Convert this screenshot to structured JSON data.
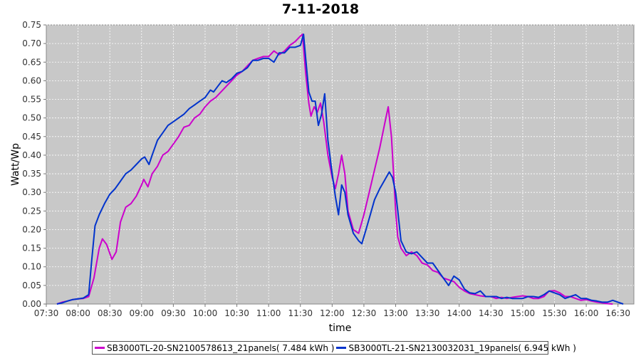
{
  "chart_data": {
    "type": "line",
    "title": "7-11-2018",
    "xlabel": "time",
    "ylabel": "Watt/Wp",
    "x_tick_labels": [
      "07:30",
      "08:00",
      "08:30",
      "09:00",
      "09:30",
      "10:00",
      "10:30",
      "11:00",
      "11:30",
      "12:00",
      "12:30",
      "13:00",
      "13:30",
      "14:00",
      "14:30",
      "15:00",
      "15:30",
      "16:00",
      "16:30"
    ],
    "y_tick_labels": [
      "0.00",
      "0.05",
      "0.10",
      "0.15",
      "0.20",
      "0.25",
      "0.30",
      "0.35",
      "0.40",
      "0.45",
      "0.50",
      "0.55",
      "0.60",
      "0.65",
      "0.70",
      "0.75"
    ],
    "xlim": [
      "07:30",
      "16:45"
    ],
    "ylim": [
      0,
      0.75
    ],
    "grid": true,
    "background": "#c8c8c8",
    "legend_position": "bottom",
    "series": [
      {
        "name": "SB3000TL-20-SN2100578613_21panels( 7.484 kWh )",
        "color": "#cc00cc",
        "points": [
          [
            "07:40",
            0.0
          ],
          [
            "07:45",
            0.005
          ],
          [
            "07:50",
            0.008
          ],
          [
            "07:55",
            0.012
          ],
          [
            "08:00",
            0.014
          ],
          [
            "08:05",
            0.015
          ],
          [
            "08:10",
            0.02
          ],
          [
            "08:15",
            0.07
          ],
          [
            "08:20",
            0.15
          ],
          [
            "08:23",
            0.175
          ],
          [
            "08:27",
            0.16
          ],
          [
            "08:32",
            0.12
          ],
          [
            "08:36",
            0.14
          ],
          [
            "08:40",
            0.22
          ],
          [
            "08:45",
            0.26
          ],
          [
            "08:50",
            0.27
          ],
          [
            "08:55",
            0.29
          ],
          [
            "09:00",
            0.32
          ],
          [
            "09:02",
            0.335
          ],
          [
            "09:06",
            0.315
          ],
          [
            "09:10",
            0.35
          ],
          [
            "09:15",
            0.37
          ],
          [
            "09:20",
            0.4
          ],
          [
            "09:25",
            0.41
          ],
          [
            "09:30",
            0.43
          ],
          [
            "09:35",
            0.45
          ],
          [
            "09:40",
            0.475
          ],
          [
            "09:45",
            0.48
          ],
          [
            "09:50",
            0.5
          ],
          [
            "09:55",
            0.51
          ],
          [
            "10:00",
            0.53
          ],
          [
            "10:05",
            0.545
          ],
          [
            "10:10",
            0.555
          ],
          [
            "10:15",
            0.57
          ],
          [
            "10:20",
            0.585
          ],
          [
            "10:25",
            0.6
          ],
          [
            "10:30",
            0.615
          ],
          [
            "10:35",
            0.625
          ],
          [
            "10:40",
            0.64
          ],
          [
            "10:45",
            0.655
          ],
          [
            "10:50",
            0.66
          ],
          [
            "10:55",
            0.665
          ],
          [
            "11:00",
            0.665
          ],
          [
            "11:05",
            0.68
          ],
          [
            "11:10",
            0.67
          ],
          [
            "11:15",
            0.68
          ],
          [
            "11:20",
            0.695
          ],
          [
            "11:25",
            0.705
          ],
          [
            "11:30",
            0.72
          ],
          [
            "11:32",
            0.725
          ],
          [
            "11:35",
            0.62
          ],
          [
            "11:38",
            0.54
          ],
          [
            "11:40",
            0.505
          ],
          [
            "11:43",
            0.53
          ],
          [
            "11:46",
            0.515
          ],
          [
            "11:49",
            0.54
          ],
          [
            "11:52",
            0.49
          ],
          [
            "11:56",
            0.4
          ],
          [
            "12:00",
            0.34
          ],
          [
            "12:03",
            0.31
          ],
          [
            "12:06",
            0.35
          ],
          [
            "12:09",
            0.4
          ],
          [
            "12:12",
            0.35
          ],
          [
            "12:15",
            0.25
          ],
          [
            "12:20",
            0.2
          ],
          [
            "12:25",
            0.19
          ],
          [
            "12:30",
            0.24
          ],
          [
            "12:35",
            0.3
          ],
          [
            "12:40",
            0.36
          ],
          [
            "12:45",
            0.42
          ],
          [
            "12:50",
            0.49
          ],
          [
            "12:53",
            0.53
          ],
          [
            "12:56",
            0.45
          ],
          [
            "12:58",
            0.35
          ],
          [
            "13:00",
            0.25
          ],
          [
            "13:02",
            0.18
          ],
          [
            "13:05",
            0.15
          ],
          [
            "13:10",
            0.13
          ],
          [
            "13:15",
            0.14
          ],
          [
            "13:20",
            0.13
          ],
          [
            "13:25",
            0.11
          ],
          [
            "13:30",
            0.105
          ],
          [
            "13:35",
            0.09
          ],
          [
            "13:40",
            0.085
          ],
          [
            "13:45",
            0.07
          ],
          [
            "13:50",
            0.065
          ],
          [
            "13:55",
            0.06
          ],
          [
            "14:00",
            0.045
          ],
          [
            "14:05",
            0.035
          ],
          [
            "14:10",
            0.028
          ],
          [
            "14:15",
            0.025
          ],
          [
            "14:20",
            0.022
          ],
          [
            "14:25",
            0.02
          ],
          [
            "14:30",
            0.02
          ],
          [
            "14:35",
            0.015
          ],
          [
            "14:40",
            0.018
          ],
          [
            "14:45",
            0.015
          ],
          [
            "14:50",
            0.018
          ],
          [
            "14:55",
            0.02
          ],
          [
            "15:00",
            0.022
          ],
          [
            "15:05",
            0.02
          ],
          [
            "15:10",
            0.015
          ],
          [
            "15:15",
            0.015
          ],
          [
            "15:20",
            0.02
          ],
          [
            "15:25",
            0.035
          ],
          [
            "15:30",
            0.036
          ],
          [
            "15:35",
            0.03
          ],
          [
            "15:40",
            0.02
          ],
          [
            "15:45",
            0.02
          ],
          [
            "15:50",
            0.015
          ],
          [
            "15:55",
            0.01
          ],
          [
            "16:00",
            0.012
          ],
          [
            "16:05",
            0.008
          ],
          [
            "16:10",
            0.005
          ],
          [
            "16:15",
            0.003
          ],
          [
            "16:20",
            0.001
          ],
          [
            "16:25",
            0.0
          ]
        ]
      },
      {
        "name": "SB3000TL-21-SN2130032031_19panels( 6.945 kWh )",
        "color": "#0033cc",
        "points": [
          [
            "07:40",
            0.0
          ],
          [
            "07:45",
            0.003
          ],
          [
            "07:50",
            0.008
          ],
          [
            "07:55",
            0.012
          ],
          [
            "08:00",
            0.014
          ],
          [
            "08:05",
            0.016
          ],
          [
            "08:10",
            0.025
          ],
          [
            "08:13",
            0.12
          ],
          [
            "08:16",
            0.21
          ],
          [
            "08:20",
            0.24
          ],
          [
            "08:25",
            0.27
          ],
          [
            "08:30",
            0.295
          ],
          [
            "08:35",
            0.31
          ],
          [
            "08:40",
            0.33
          ],
          [
            "08:45",
            0.35
          ],
          [
            "08:50",
            0.36
          ],
          [
            "08:55",
            0.375
          ],
          [
            "09:00",
            0.39
          ],
          [
            "09:03",
            0.395
          ],
          [
            "09:07",
            0.375
          ],
          [
            "09:10",
            0.4
          ],
          [
            "09:15",
            0.44
          ],
          [
            "09:20",
            0.46
          ],
          [
            "09:25",
            0.48
          ],
          [
            "09:30",
            0.49
          ],
          [
            "09:35",
            0.5
          ],
          [
            "09:40",
            0.51
          ],
          [
            "09:45",
            0.525
          ],
          [
            "09:50",
            0.535
          ],
          [
            "09:55",
            0.545
          ],
          [
            "10:00",
            0.555
          ],
          [
            "10:05",
            0.575
          ],
          [
            "10:08",
            0.57
          ],
          [
            "10:12",
            0.585
          ],
          [
            "10:16",
            0.6
          ],
          [
            "10:20",
            0.595
          ],
          [
            "10:25",
            0.605
          ],
          [
            "10:30",
            0.62
          ],
          [
            "10:35",
            0.625
          ],
          [
            "10:40",
            0.635
          ],
          [
            "10:45",
            0.655
          ],
          [
            "10:50",
            0.655
          ],
          [
            "10:55",
            0.66
          ],
          [
            "11:00",
            0.66
          ],
          [
            "11:05",
            0.65
          ],
          [
            "11:10",
            0.675
          ],
          [
            "11:15",
            0.675
          ],
          [
            "11:20",
            0.69
          ],
          [
            "11:25",
            0.69
          ],
          [
            "11:30",
            0.695
          ],
          [
            "11:33",
            0.725
          ],
          [
            "11:35",
            0.66
          ],
          [
            "11:38",
            0.57
          ],
          [
            "11:41",
            0.545
          ],
          [
            "11:44",
            0.545
          ],
          [
            "11:47",
            0.48
          ],
          [
            "11:50",
            0.51
          ],
          [
            "11:53",
            0.565
          ],
          [
            "11:56",
            0.44
          ],
          [
            "12:00",
            0.35
          ],
          [
            "12:03",
            0.29
          ],
          [
            "12:06",
            0.24
          ],
          [
            "12:09",
            0.32
          ],
          [
            "12:12",
            0.3
          ],
          [
            "12:15",
            0.24
          ],
          [
            "12:20",
            0.19
          ],
          [
            "12:25",
            0.17
          ],
          [
            "12:28",
            0.162
          ],
          [
            "12:32",
            0.2
          ],
          [
            "12:36",
            0.24
          ],
          [
            "12:40",
            0.28
          ],
          [
            "12:45",
            0.31
          ],
          [
            "12:50",
            0.335
          ],
          [
            "12:54",
            0.355
          ],
          [
            "12:57",
            0.34
          ],
          [
            "13:00",
            0.3
          ],
          [
            "13:02",
            0.25
          ],
          [
            "13:05",
            0.17
          ],
          [
            "13:10",
            0.14
          ],
          [
            "13:15",
            0.135
          ],
          [
            "13:20",
            0.14
          ],
          [
            "13:25",
            0.125
          ],
          [
            "13:30",
            0.11
          ],
          [
            "13:35",
            0.11
          ],
          [
            "13:40",
            0.09
          ],
          [
            "13:45",
            0.07
          ],
          [
            "13:50",
            0.05
          ],
          [
            "13:55",
            0.075
          ],
          [
            "14:00",
            0.065
          ],
          [
            "14:05",
            0.04
          ],
          [
            "14:10",
            0.03
          ],
          [
            "14:15",
            0.028
          ],
          [
            "14:20",
            0.035
          ],
          [
            "14:25",
            0.02
          ],
          [
            "14:30",
            0.02
          ],
          [
            "14:35",
            0.02
          ],
          [
            "14:40",
            0.015
          ],
          [
            "14:45",
            0.018
          ],
          [
            "14:50",
            0.015
          ],
          [
            "14:55",
            0.015
          ],
          [
            "15:00",
            0.015
          ],
          [
            "15:05",
            0.02
          ],
          [
            "15:10",
            0.02
          ],
          [
            "15:15",
            0.018
          ],
          [
            "15:20",
            0.025
          ],
          [
            "15:25",
            0.035
          ],
          [
            "15:30",
            0.03
          ],
          [
            "15:35",
            0.025
          ],
          [
            "15:40",
            0.015
          ],
          [
            "15:45",
            0.02
          ],
          [
            "15:50",
            0.025
          ],
          [
            "15:55",
            0.015
          ],
          [
            "16:00",
            0.015
          ],
          [
            "16:05",
            0.01
          ],
          [
            "16:10",
            0.008
          ],
          [
            "16:15",
            0.005
          ],
          [
            "16:20",
            0.005
          ],
          [
            "16:25",
            0.01
          ],
          [
            "16:30",
            0.005
          ],
          [
            "16:35",
            0.0
          ]
        ]
      }
    ]
  }
}
